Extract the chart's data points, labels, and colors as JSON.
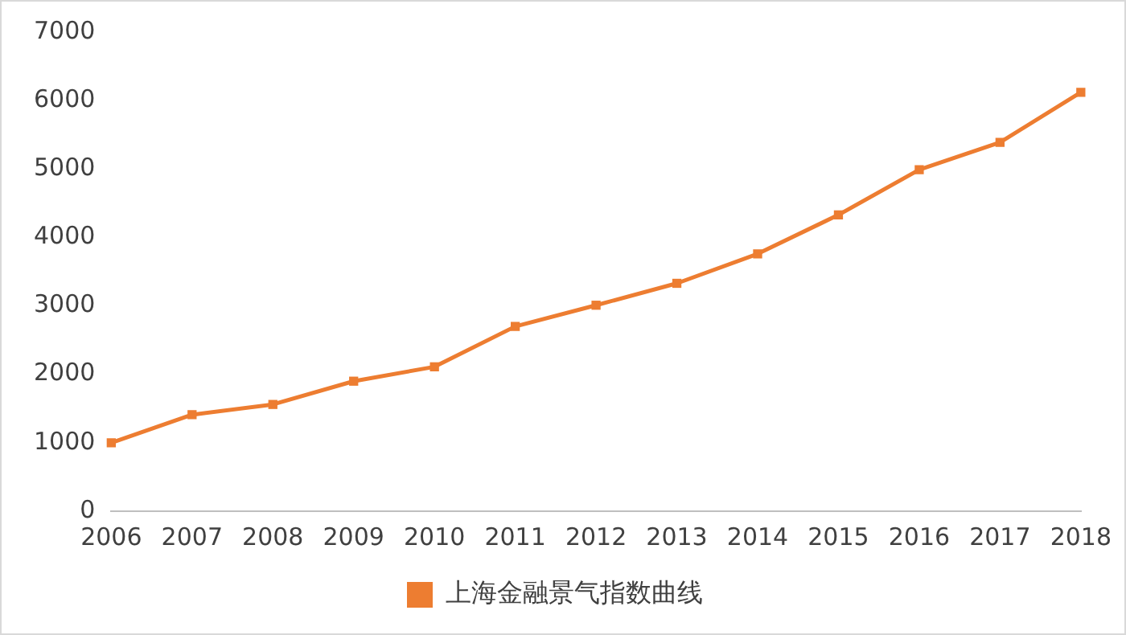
{
  "chart_data": {
    "type": "line",
    "categories": [
      "2006",
      "2007",
      "2008",
      "2009",
      "2010",
      "2011",
      "2012",
      "2013",
      "2014",
      "2015",
      "2016",
      "2017",
      "2018"
    ],
    "series": [
      {
        "name": "上海金融景气指数曲线",
        "color": "#ed7d31",
        "values": [
          1000,
          1410,
          1560,
          1900,
          2110,
          2700,
          3010,
          3330,
          3760,
          4330,
          4990,
          5390,
          6120
        ]
      }
    ],
    "ylim": [
      0,
      7000
    ],
    "yticks": [
      0,
      1000,
      2000,
      3000,
      4000,
      5000,
      6000,
      7000
    ],
    "grid": false,
    "legend": "bottom",
    "marker": "square",
    "line_style": "solid"
  }
}
